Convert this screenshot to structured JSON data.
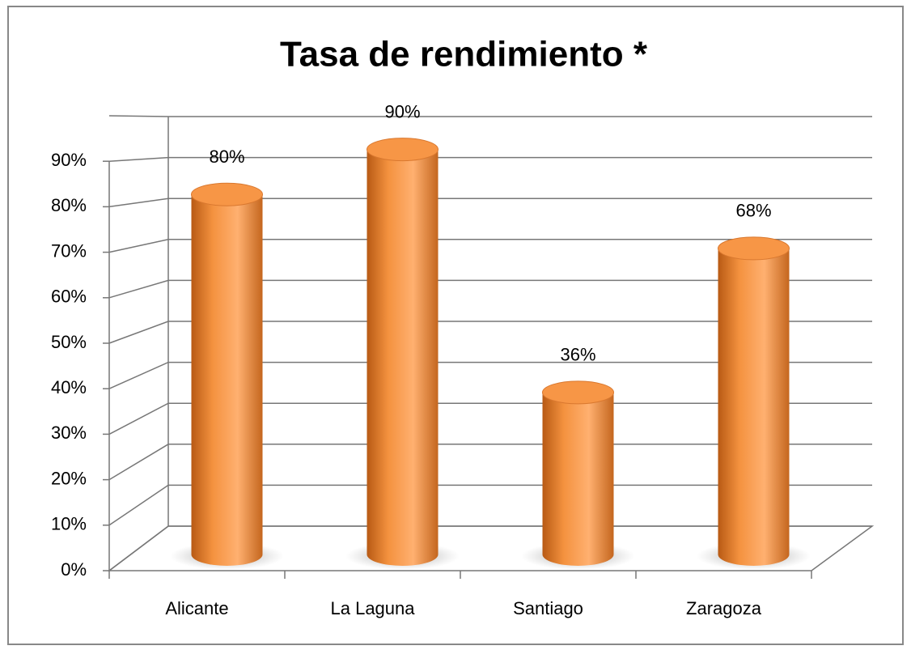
{
  "chart_data": {
    "type": "bar",
    "title": "Tasa de rendimiento *",
    "categories": [
      "Alicante",
      "La Laguna",
      "Santiago",
      "Zaragoza"
    ],
    "values": [
      80,
      90,
      36,
      68
    ],
    "value_labels": [
      "80%",
      "90%",
      "36%",
      "68%"
    ],
    "color": "#f79646",
    "ylim": [
      0,
      100
    ],
    "yticks": [
      {
        "value": 0,
        "label": "0%"
      },
      {
        "value": 10,
        "label": "10%"
      },
      {
        "value": 20,
        "label": "20%"
      },
      {
        "value": 30,
        "label": "30%"
      },
      {
        "value": 40,
        "label": "40%"
      },
      {
        "value": 50,
        "label": "50%"
      },
      {
        "value": 60,
        "label": "60%"
      },
      {
        "value": 70,
        "label": "70%"
      },
      {
        "value": 80,
        "label": "80%"
      },
      {
        "value": 90,
        "label": "90%"
      }
    ],
    "grid": true
  }
}
